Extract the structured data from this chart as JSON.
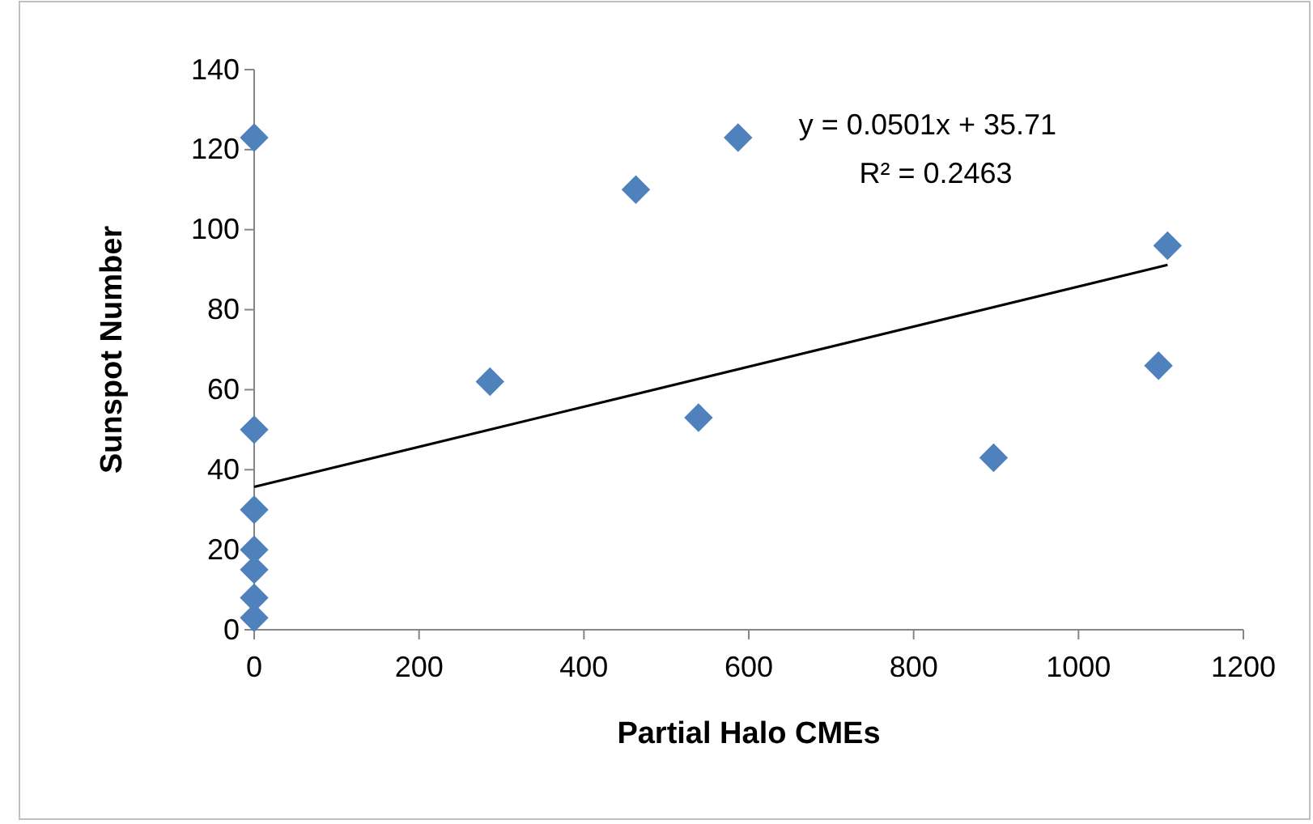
{
  "chart_data": {
    "type": "scatter",
    "xlabel": "Partial Halo CMEs",
    "ylabel": "Sunspot Number",
    "xlim": [
      0,
      1200
    ],
    "xticks": [
      0,
      200,
      400,
      600,
      800,
      1000,
      1200
    ],
    "ylim": [
      0,
      140
    ],
    "yticks": [
      0,
      20,
      40,
      60,
      80,
      100,
      120,
      140
    ],
    "grid": false,
    "annotations": [
      "y = 0.0501x + 35.71",
      "R² = 0.2463"
    ],
    "series": [
      {
        "marker": "diamond",
        "color": "#4f81bd",
        "x": [
          0,
          0,
          0,
          0,
          0,
          0,
          0,
          286,
          463,
          587,
          539,
          897,
          1097,
          1108
        ],
        "values": [
          123,
          50,
          30,
          20,
          15,
          8,
          3,
          62,
          110,
          123,
          53,
          43,
          66,
          96
        ]
      },
      {
        "type": "line",
        "color": "#000000",
        "x": [
          0,
          1108
        ],
        "values": [
          35.7,
          91.2
        ]
      }
    ]
  }
}
